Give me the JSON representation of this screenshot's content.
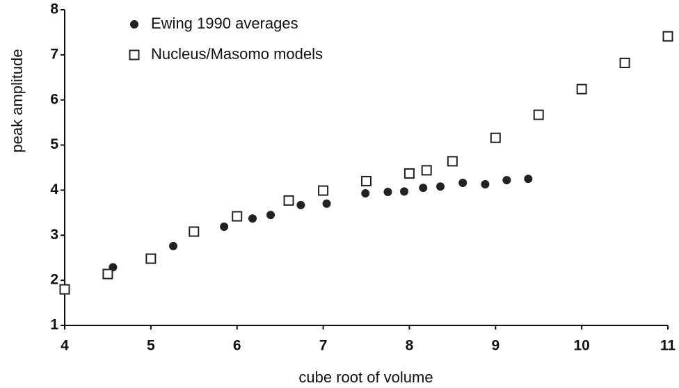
{
  "chart_data": {
    "type": "scatter",
    "xlabel": "cube root of volume",
    "ylabel": "peak amplitude",
    "xlim": [
      4,
      11
    ],
    "xticks": [
      4,
      5,
      6,
      7,
      8,
      9,
      10,
      11
    ],
    "ylim": [
      1,
      8
    ],
    "yticks": [
      1,
      2,
      3,
      4,
      5,
      6,
      7,
      8
    ],
    "legend": "upper left",
    "series": [
      {
        "name": "Ewing 1990 averages",
        "marker": "circle",
        "color": "#222222",
        "x": [
          4.56,
          5.26,
          5.85,
          6.18,
          6.39,
          6.74,
          7.04,
          7.49,
          7.75,
          7.94,
          8.16,
          8.36,
          8.62,
          8.88,
          9.13,
          9.38
        ],
        "values": [
          2.29,
          2.76,
          3.19,
          3.37,
          3.45,
          3.67,
          3.7,
          3.93,
          3.96,
          3.97,
          4.05,
          4.08,
          4.16,
          4.13,
          4.22,
          4.25
        ]
      },
      {
        "name": "Nucleus/Masomo models",
        "marker": "square",
        "color": "#222222",
        "x": [
          4,
          4.5,
          5,
          5.5,
          6,
          6.6,
          7,
          7.5,
          8,
          8.2,
          8.5,
          9,
          9.5,
          10,
          10.5,
          11
        ],
        "values": [
          1.8,
          2.14,
          2.48,
          3.08,
          3.42,
          3.77,
          3.99,
          4.2,
          4.37,
          4.44,
          4.64,
          5.16,
          5.67,
          6.24,
          6.82,
          7.41
        ]
      }
    ]
  }
}
